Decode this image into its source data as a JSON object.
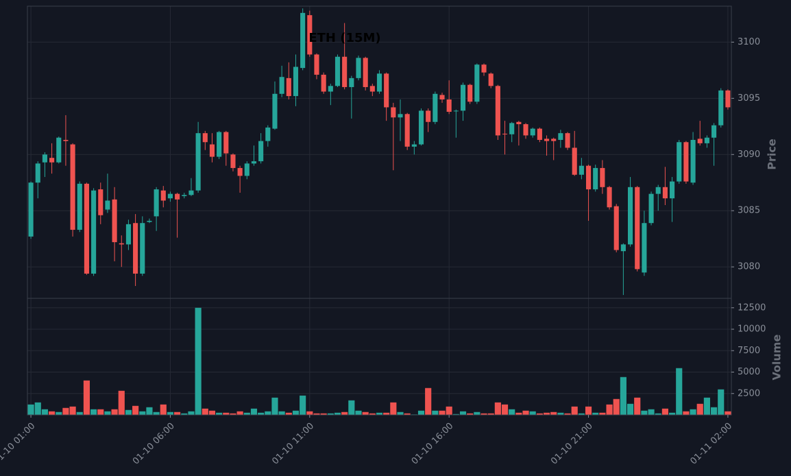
{
  "chart_data": {
    "type": "candlestick",
    "title": "ETH (15M)",
    "categories": [
      "01-10 01:00",
      null,
      null,
      null,
      null,
      null,
      null,
      null,
      null,
      null,
      null,
      null,
      null,
      null,
      null,
      null,
      null,
      null,
      null,
      null,
      "01-10 06:00",
      null,
      null,
      null,
      null,
      null,
      null,
      null,
      null,
      null,
      null,
      null,
      null,
      null,
      null,
      null,
      null,
      null,
      null,
      null,
      "01-10 11:00",
      null,
      null,
      null,
      null,
      null,
      null,
      null,
      null,
      null,
      null,
      null,
      null,
      null,
      null,
      null,
      null,
      null,
      null,
      null,
      "01-10 16:00",
      null,
      null,
      null,
      null,
      null,
      null,
      null,
      null,
      null,
      null,
      null,
      null,
      null,
      null,
      null,
      null,
      null,
      null,
      null,
      "01-10 21:00",
      null,
      null,
      null,
      null,
      null,
      null,
      null,
      null,
      null,
      null,
      null,
      null,
      null,
      null,
      null,
      null,
      null,
      null,
      null,
      "01-11 02:00"
    ],
    "open": [
      3082.7,
      3087.5,
      3089.3,
      3089.7,
      3089.3,
      3091.3,
      3090.9,
      3083.3,
      3087.4,
      3079.4,
      3086.9,
      3085.1,
      3086.0,
      3082.1,
      3082.0,
      3083.9,
      3079.4,
      3084.0,
      3084.5,
      3086.8,
      3086.1,
      3086.5,
      3086.3,
      3086.4,
      3086.8,
      3091.9,
      3090.9,
      3089.8,
      3092.0,
      3090.0,
      3088.8,
      3088.1,
      3089.2,
      3089.4,
      3091.2,
      3092.3,
      3095.4,
      3096.8,
      3095.2,
      3097.7,
      3102.4,
      3098.9,
      3097.1,
      3095.6,
      3096.1,
      3098.7,
      3096.0,
      3096.8,
      3098.6,
      3096.1,
      3095.6,
      3097.2,
      3094.2,
      3093.3,
      3093.6,
      3090.7,
      3090.9,
      3093.9,
      3092.9,
      3095.3,
      3094.9,
      3093.85,
      3093.9,
      3096.2,
      3094.7,
      3098.0,
      3097.2,
      3096.1,
      3091.85,
      3091.8,
      3092.9,
      3092.7,
      3091.7,
      3092.3,
      3091.4,
      3091.4,
      3091.3,
      3091.9,
      3090.6,
      3088.2,
      3089.0,
      3086.9,
      3088.8,
      3087.1,
      3085.4,
      3081.4,
      3082.0,
      3087.1,
      3079.5,
      3083.9,
      3086.5,
      3087.1,
      3086.1,
      3087.6,
      3091.1,
      3087.5,
      3091.4,
      3091.0,
      3091.5,
      3092.6,
      3095.7
    ],
    "high": [
      3087.6,
      3089.4,
      3090.2,
      3091.0,
      3091.6,
      3093.5,
      3091.0,
      3087.6,
      3087.5,
      3087.0,
      3087.5,
      3088.3,
      3087.1,
      3082.8,
      3084.2,
      3084.7,
      3084.5,
      3084.3,
      3087.1,
      3087.2,
      3086.7,
      3086.6,
      3086.6,
      3087.9,
      3092.9,
      3092.1,
      3091.9,
      3092.1,
      3092.1,
      3090.1,
      3089.0,
      3089.4,
      3090.8,
      3091.9,
      3092.6,
      3096.5,
      3097.9,
      3098.2,
      3098.9,
      3103.0,
      3102.8,
      3099.0,
      3097.3,
      3096.3,
      3098.9,
      3101.7,
      3097.0,
      3098.8,
      3098.7,
      3096.3,
      3097.5,
      3097.3,
      3094.6,
      3094.9,
      3093.7,
      3091.2,
      3094.1,
      3094.1,
      3095.6,
      3095.5,
      3096.6,
      3094.0,
      3096.4,
      3096.3,
      3098.1,
      3098.1,
      3097.3,
      3096.2,
      3093.0,
      3092.9,
      3093.0,
      3092.8,
      3092.4,
      3092.4,
      3091.7,
      3091.5,
      3092.2,
      3092.0,
      3092.1,
      3089.7,
      3089.1,
      3089.1,
      3089.5,
      3087.2,
      3085.6,
      3082.1,
      3088.0,
      3087.2,
      3085.0,
      3086.7,
      3087.3,
      3088.9,
      3088.0,
      3091.3,
      3091.2,
      3092.0,
      3093.0,
      3091.7,
      3092.8,
      3095.9,
      3095.8
    ],
    "low": [
      3082.5,
      3086.1,
      3088.0,
      3088.3,
      3089.2,
      3089.0,
      3082.7,
      3083.1,
      3079.3,
      3079.2,
      3083.8,
      3084.8,
      3080.5,
      3080.0,
      3081.5,
      3078.3,
      3079.2,
      3083.9,
      3083.2,
      3085.3,
      3085.8,
      3082.6,
      3086.1,
      3086.3,
      3086.6,
      3090.4,
      3089.3,
      3089.6,
      3089.0,
      3088.5,
      3086.6,
      3087.8,
      3089.0,
      3089.2,
      3090.7,
      3092.2,
      3095.1,
      3094.9,
      3094.3,
      3097.5,
      3098.7,
      3096.7,
      3095.4,
      3094.4,
      3096.0,
      3095.8,
      3093.2,
      3096.6,
      3095.7,
      3095.2,
      3095.4,
      3093.0,
      3088.6,
      3091.2,
      3090.4,
      3090.0,
      3090.8,
      3092.0,
      3092.7,
      3094.6,
      3093.6,
      3091.5,
      3093.0,
      3094.5,
      3094.5,
      3097.0,
      3095.9,
      3091.3,
      3090.0,
      3091.1,
      3090.8,
      3091.4,
      3091.5,
      3091.1,
      3089.9,
      3089.5,
      3090.6,
      3090.4,
      3088.1,
      3087.8,
      3084.1,
      3086.7,
      3086.5,
      3085.1,
      3081.3,
      3077.5,
      3081.8,
      3079.6,
      3079.2,
      3083.7,
      3085.0,
      3085.5,
      3084.0,
      3087.4,
      3087.4,
      3087.3,
      3090.8,
      3090.6,
      3089.0,
      3092.4,
      3094.0
    ],
    "close": [
      3087.5,
      3089.2,
      3090.0,
      3089.3,
      3091.5,
      3091.2,
      3083.3,
      3087.4,
      3079.4,
      3086.8,
      3084.6,
      3085.9,
      3082.2,
      3082.0,
      3083.8,
      3079.4,
      3083.9,
      3084.1,
      3086.9,
      3085.9,
      3086.5,
      3086.0,
      3086.4,
      3086.8,
      3091.9,
      3091.1,
      3089.8,
      3092.0,
      3090.1,
      3088.8,
      3088.1,
      3089.2,
      3089.4,
      3091.2,
      3092.4,
      3095.4,
      3096.9,
      3095.2,
      3097.8,
      3102.6,
      3098.9,
      3097.1,
      3095.6,
      3096.1,
      3098.7,
      3096.0,
      3096.8,
      3098.6,
      3096.0,
      3095.6,
      3097.2,
      3094.2,
      3093.3,
      3093.6,
      3090.7,
      3090.9,
      3093.9,
      3092.9,
      3095.4,
      3094.9,
      3093.8,
      3093.9,
      3096.2,
      3094.7,
      3098.0,
      3097.3,
      3096.1,
      3091.7,
      3091.8,
      3092.8,
      3092.7,
      3091.7,
      3092.3,
      3091.3,
      3091.2,
      3091.2,
      3091.9,
      3090.6,
      3088.2,
      3089.0,
      3086.9,
      3088.8,
      3087.1,
      3085.3,
      3081.5,
      3082.0,
      3087.1,
      3079.8,
      3083.9,
      3086.5,
      3087.1,
      3086.1,
      3087.6,
      3091.1,
      3087.6,
      3091.3,
      3091.0,
      3091.5,
      3092.6,
      3095.7,
      3094.2
    ],
    "volume": [
      1220,
      1460,
      660,
      420,
      340,
      820,
      980,
      340,
      4020,
      660,
      660,
      420,
      660,
      2820,
      580,
      1060,
      420,
      900,
      340,
      1220,
      340,
      340,
      180,
      420,
      12500,
      740,
      500,
      260,
      260,
      180,
      420,
      260,
      740,
      260,
      420,
      2020,
      420,
      260,
      500,
      2260,
      420,
      180,
      180,
      180,
      260,
      340,
      1700,
      500,
      340,
      180,
      260,
      260,
      1460,
      340,
      180,
      60,
      500,
      3140,
      500,
      500,
      980,
      100,
      420,
      180,
      340,
      180,
      180,
      1460,
      1220,
      660,
      260,
      500,
      420,
      180,
      260,
      340,
      260,
      180,
      980,
      180,
      980,
      260,
      260,
      1220,
      1860,
      4420,
      1300,
      2020,
      500,
      660,
      180,
      740,
      260,
      5460,
      420,
      660,
      1300,
      2020,
      900,
      2980,
      420
    ],
    "ylim": [
      3077.2,
      3103.2
    ],
    "yticks": [
      3080,
      3085,
      3090,
      3095,
      3100
    ],
    "ylabel": "Price",
    "volume_ylim": [
      0,
      13600
    ],
    "volume_yticks": [
      2500,
      5000,
      7500,
      10000,
      12500
    ],
    "volume_ylabel": "Volume",
    "up_color": "#26a69a",
    "down_color": "#ef5350",
    "grid": true
  }
}
